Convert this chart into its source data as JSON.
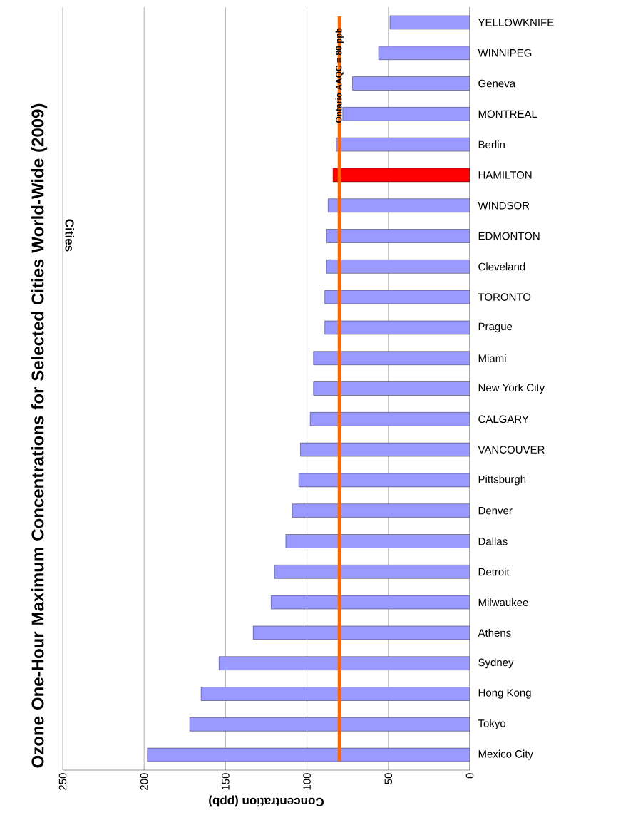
{
  "chart_data": {
    "type": "bar",
    "orientation": "horizontal",
    "title": "Ozone One-Hour Maximum Concentrations for Selected Cities World-Wide (2009)",
    "xlabel": "Concentration (ppb)",
    "ylabel": "Cities",
    "categories": [
      "YELLOWKNIFE",
      "WINNIPEG",
      "Geneva",
      "MONTREAL",
      "Berlin",
      "HAMILTON",
      "WINDSOR",
      "EDMONTON",
      "Cleveland",
      "TORONTO",
      "Prague",
      "Miami",
      "New York City",
      "CALGARY",
      "VANCOUVER",
      "Pittsburgh",
      "Denver",
      "Dallas",
      "Detroit",
      "Milwaukee",
      "Athens",
      "Sydney",
      "Hong Kong",
      "Tokyo",
      "Mexico City"
    ],
    "values": [
      49,
      56,
      72,
      78,
      82,
      84,
      87,
      88,
      88,
      89,
      89,
      96,
      96,
      98,
      104,
      105,
      109,
      113,
      120,
      122,
      133,
      154,
      165,
      172,
      198
    ],
    "colors": [
      "#9999ff",
      "#9999ff",
      "#9999ff",
      "#9999ff",
      "#9999ff",
      "#ff0000",
      "#9999ff",
      "#9999ff",
      "#9999ff",
      "#9999ff",
      "#9999ff",
      "#9999ff",
      "#9999ff",
      "#9999ff",
      "#9999ff",
      "#9999ff",
      "#9999ff",
      "#9999ff",
      "#9999ff",
      "#9999ff",
      "#9999ff",
      "#9999ff",
      "#9999ff",
      "#9999ff",
      "#9999ff"
    ],
    "xlim": [
      250,
      0
    ],
    "xticks": [
      250,
      200,
      150,
      100,
      50,
      0
    ],
    "grid": "x",
    "ref_lines": [
      {
        "axis": "x",
        "value": 80,
        "label": "Ontario AAQC = 80 ppb",
        "color": "#ff6600"
      }
    ]
  }
}
